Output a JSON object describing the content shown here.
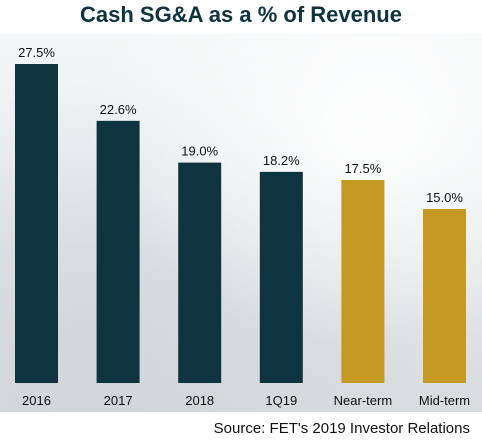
{
  "chart_data": {
    "type": "bar",
    "title": "Cash SG&A as a % of Revenue",
    "categories": [
      "2016",
      "2017",
      "2018",
      "1Q19",
      "Near-term",
      "Mid-term"
    ],
    "values": [
      27.5,
      22.6,
      19.0,
      18.2,
      17.5,
      15.0
    ],
    "value_labels": [
      "27.5%",
      "22.6%",
      "19.0%",
      "18.2%",
      "17.5%",
      "15.0%"
    ],
    "ylim": [
      0,
      27.5
    ],
    "grid": false,
    "colors": {
      "actual": "#0e3440",
      "target": "#c49a22"
    },
    "bar_groups": [
      "actual",
      "actual",
      "actual",
      "actual",
      "target",
      "target"
    ]
  },
  "source": "Source: FET's 2019 Investor Relations"
}
